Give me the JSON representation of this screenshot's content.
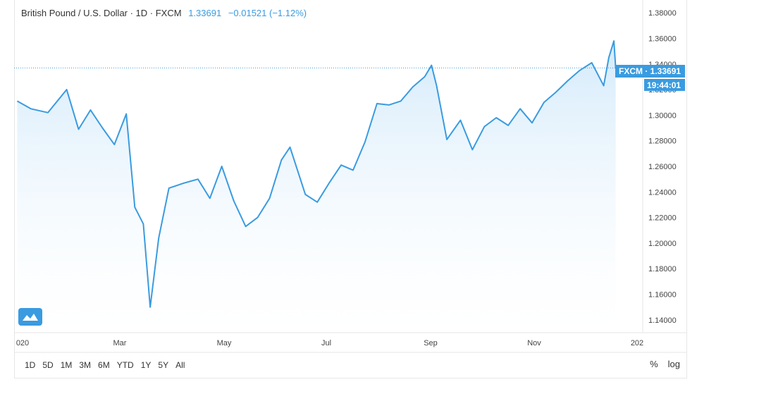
{
  "legend": {
    "name": "British Pound / U.S. Dollar · 1D · FXCM",
    "value": "1.33691",
    "change": "−0.01521 (−1.12%)"
  },
  "price_tag": {
    "label": "FXCM · 1.33691",
    "time": "19:44:01"
  },
  "toolbar": {
    "ranges": [
      "1D",
      "5D",
      "1M",
      "3M",
      "6M",
      "YTD",
      "1Y",
      "5Y",
      "All"
    ],
    "percent": "%",
    "log": "log"
  },
  "logo_icon": "tradingview-cloud-icon",
  "colors": {
    "line": "#3a9be0",
    "fill": "#dff0fb",
    "tag": "#3a9be0"
  },
  "chart_data": {
    "type": "area",
    "title": "British Pound / U.S. Dollar",
    "x_ticks": [
      "020",
      "Mar",
      "May",
      "Jul",
      "Sep",
      "Nov",
      "202"
    ],
    "y_ticks": [
      "1.38000",
      "1.36000",
      "1.34000",
      "1.32000",
      "1.30000",
      "1.28000",
      "1.26000",
      "1.24000",
      "1.22000",
      "1.20000",
      "1.18000",
      "1.16000",
      "1.14000"
    ],
    "ylim": [
      1.13,
      1.39
    ],
    "last_value": 1.33691,
    "series": [
      {
        "x": [
          "2020-01-02",
          "2020-01-10",
          "2020-01-20",
          "2020-01-31",
          "2020-02-07",
          "2020-02-14",
          "2020-02-21",
          "2020-02-28",
          "2020-03-06",
          "2020-03-11",
          "2020-03-16",
          "2020-03-20",
          "2020-03-25",
          "2020-03-31",
          "2020-04-09",
          "2020-04-17",
          "2020-04-24",
          "2020-05-01",
          "2020-05-08",
          "2020-05-15",
          "2020-05-22",
          "2020-05-29",
          "2020-06-05",
          "2020-06-10",
          "2020-06-19",
          "2020-06-26",
          "2020-07-03",
          "2020-07-10",
          "2020-07-17",
          "2020-07-24",
          "2020-07-31",
          "2020-08-07",
          "2020-08-14",
          "2020-08-21",
          "2020-08-28",
          "2020-09-01",
          "2020-09-04",
          "2020-09-10",
          "2020-09-18",
          "2020-09-25",
          "2020-10-02",
          "2020-10-09",
          "2020-10-16",
          "2020-10-23",
          "2020-10-30",
          "2020-11-06",
          "2020-11-13",
          "2020-11-20",
          "2020-11-27",
          "2020-12-04",
          "2020-12-11",
          "2020-12-14",
          "2020-12-17",
          "2020-12-18"
        ],
        "values": [
          1.311,
          1.305,
          1.302,
          1.32,
          1.289,
          1.304,
          1.29,
          1.277,
          1.301,
          1.228,
          1.215,
          1.15,
          1.204,
          1.243,
          1.247,
          1.25,
          1.235,
          1.26,
          1.233,
          1.213,
          1.22,
          1.235,
          1.265,
          1.275,
          1.238,
          1.232,
          1.247,
          1.261,
          1.257,
          1.279,
          1.309,
          1.308,
          1.311,
          1.322,
          1.33,
          1.339,
          1.323,
          1.281,
          1.296,
          1.273,
          1.291,
          1.298,
          1.292,
          1.305,
          1.294,
          1.31,
          1.318,
          1.327,
          1.335,
          1.341,
          1.323,
          1.345,
          1.358,
          1.337
        ]
      }
    ]
  }
}
